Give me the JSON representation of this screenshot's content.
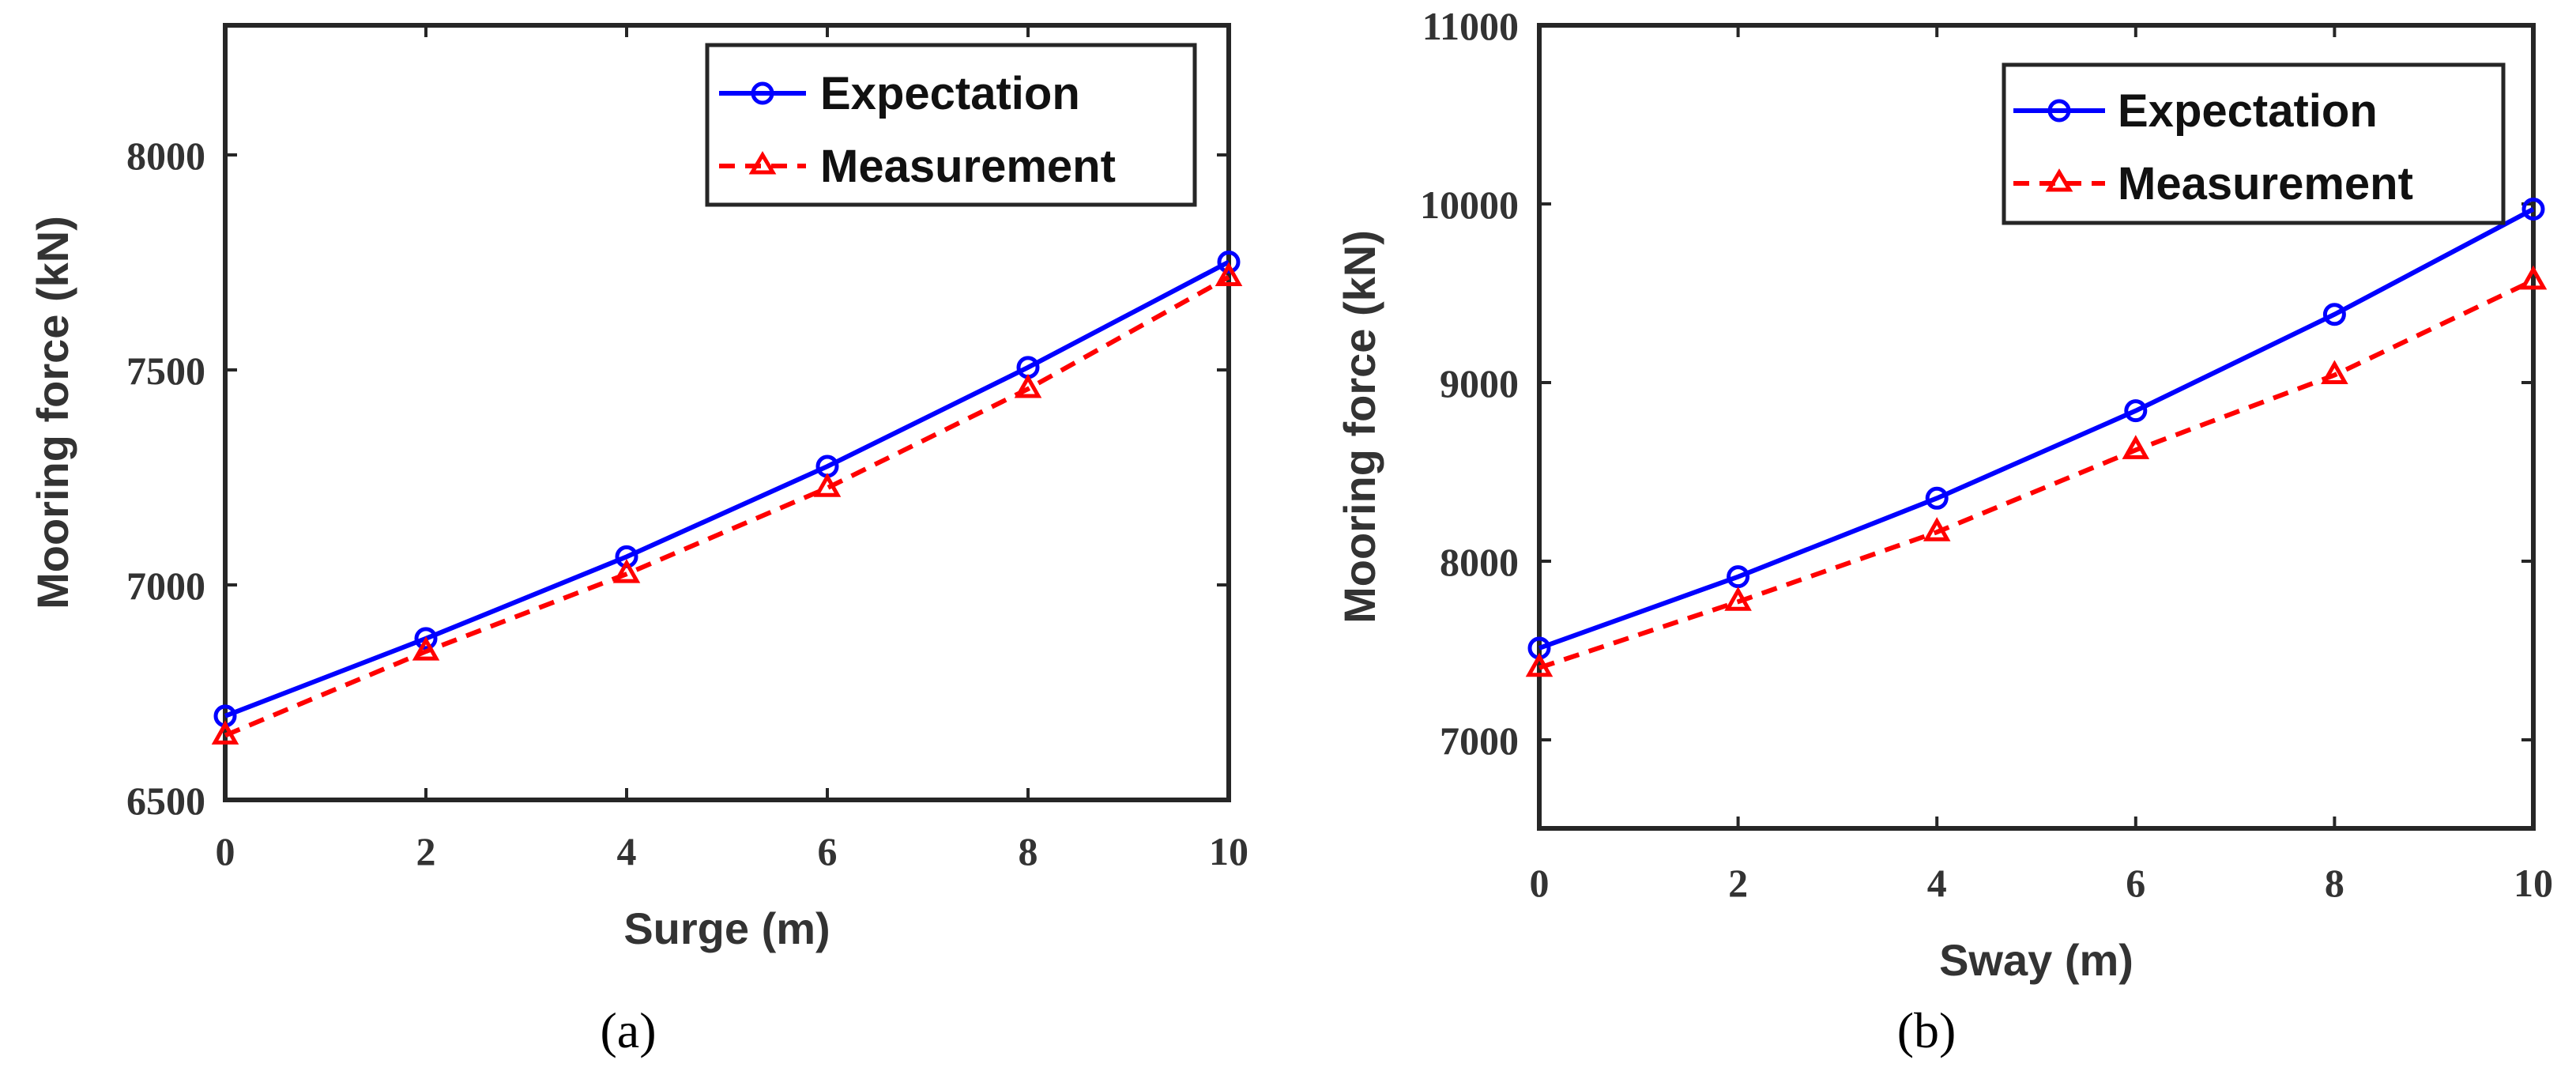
{
  "colors": {
    "expectation": "#0000ff",
    "measurement": "#ff0000",
    "axis": "#262626",
    "text": "#333333"
  },
  "chart_data": [
    {
      "id": "a",
      "type": "line",
      "caption": "(a)",
      "xlabel": "Surge (m)",
      "ylabel": "Mooring force (kN)",
      "xlim": [
        0,
        10
      ],
      "ylim": [
        6500,
        8300
      ],
      "xticks": [
        0,
        2,
        4,
        6,
        8,
        10
      ],
      "xtick_labels": [
        "0",
        "2",
        "4",
        "6",
        "8",
        "10"
      ],
      "yticks": [
        6500,
        7000,
        7500,
        8000
      ],
      "ytick_labels": [
        "6500",
        "7000",
        "7500",
        "8000"
      ],
      "grid": false,
      "legend_position": "top-right",
      "x": [
        0,
        2,
        4,
        6,
        8,
        10
      ],
      "series": [
        {
          "name": "Expectation",
          "style": "solid",
          "marker": "circle",
          "color": "#0000ff",
          "values": [
            6695,
            6875,
            7065,
            7275,
            7505,
            7750
          ]
        },
        {
          "name": "Measurement",
          "style": "dashed",
          "marker": "triangle",
          "color": "#ff0000",
          "values": [
            6650,
            6845,
            7025,
            7225,
            7455,
            7715
          ]
        }
      ]
    },
    {
      "id": "b",
      "type": "line",
      "caption": "(b)",
      "xlabel": "Sway (m)",
      "ylabel": "Mooring force (kN)",
      "xlim": [
        0,
        10
      ],
      "ylim": [
        6500,
        11000
      ],
      "xticks": [
        0,
        2,
        4,
        6,
        8,
        10
      ],
      "xtick_labels": [
        "0",
        "2",
        "4",
        "6",
        "8",
        "10"
      ],
      "yticks": [
        7000,
        8000,
        9000,
        10000,
        11000
      ],
      "ytick_labels": [
        "7000",
        "8000",
        "9000",
        "10000",
        "11000"
      ],
      "grid": false,
      "legend_position": "top-right",
      "x": [
        0,
        2,
        4,
        6,
        8,
        10
      ],
      "series": [
        {
          "name": "Expectation",
          "style": "solid",
          "marker": "circle",
          "color": "#0000ff",
          "values": [
            7510,
            7910,
            8350,
            8840,
            9380,
            9970
          ]
        },
        {
          "name": "Measurement",
          "style": "dashed",
          "marker": "triangle",
          "color": "#ff0000",
          "values": [
            7400,
            7770,
            8160,
            8620,
            9040,
            9570
          ]
        }
      ]
    }
  ]
}
